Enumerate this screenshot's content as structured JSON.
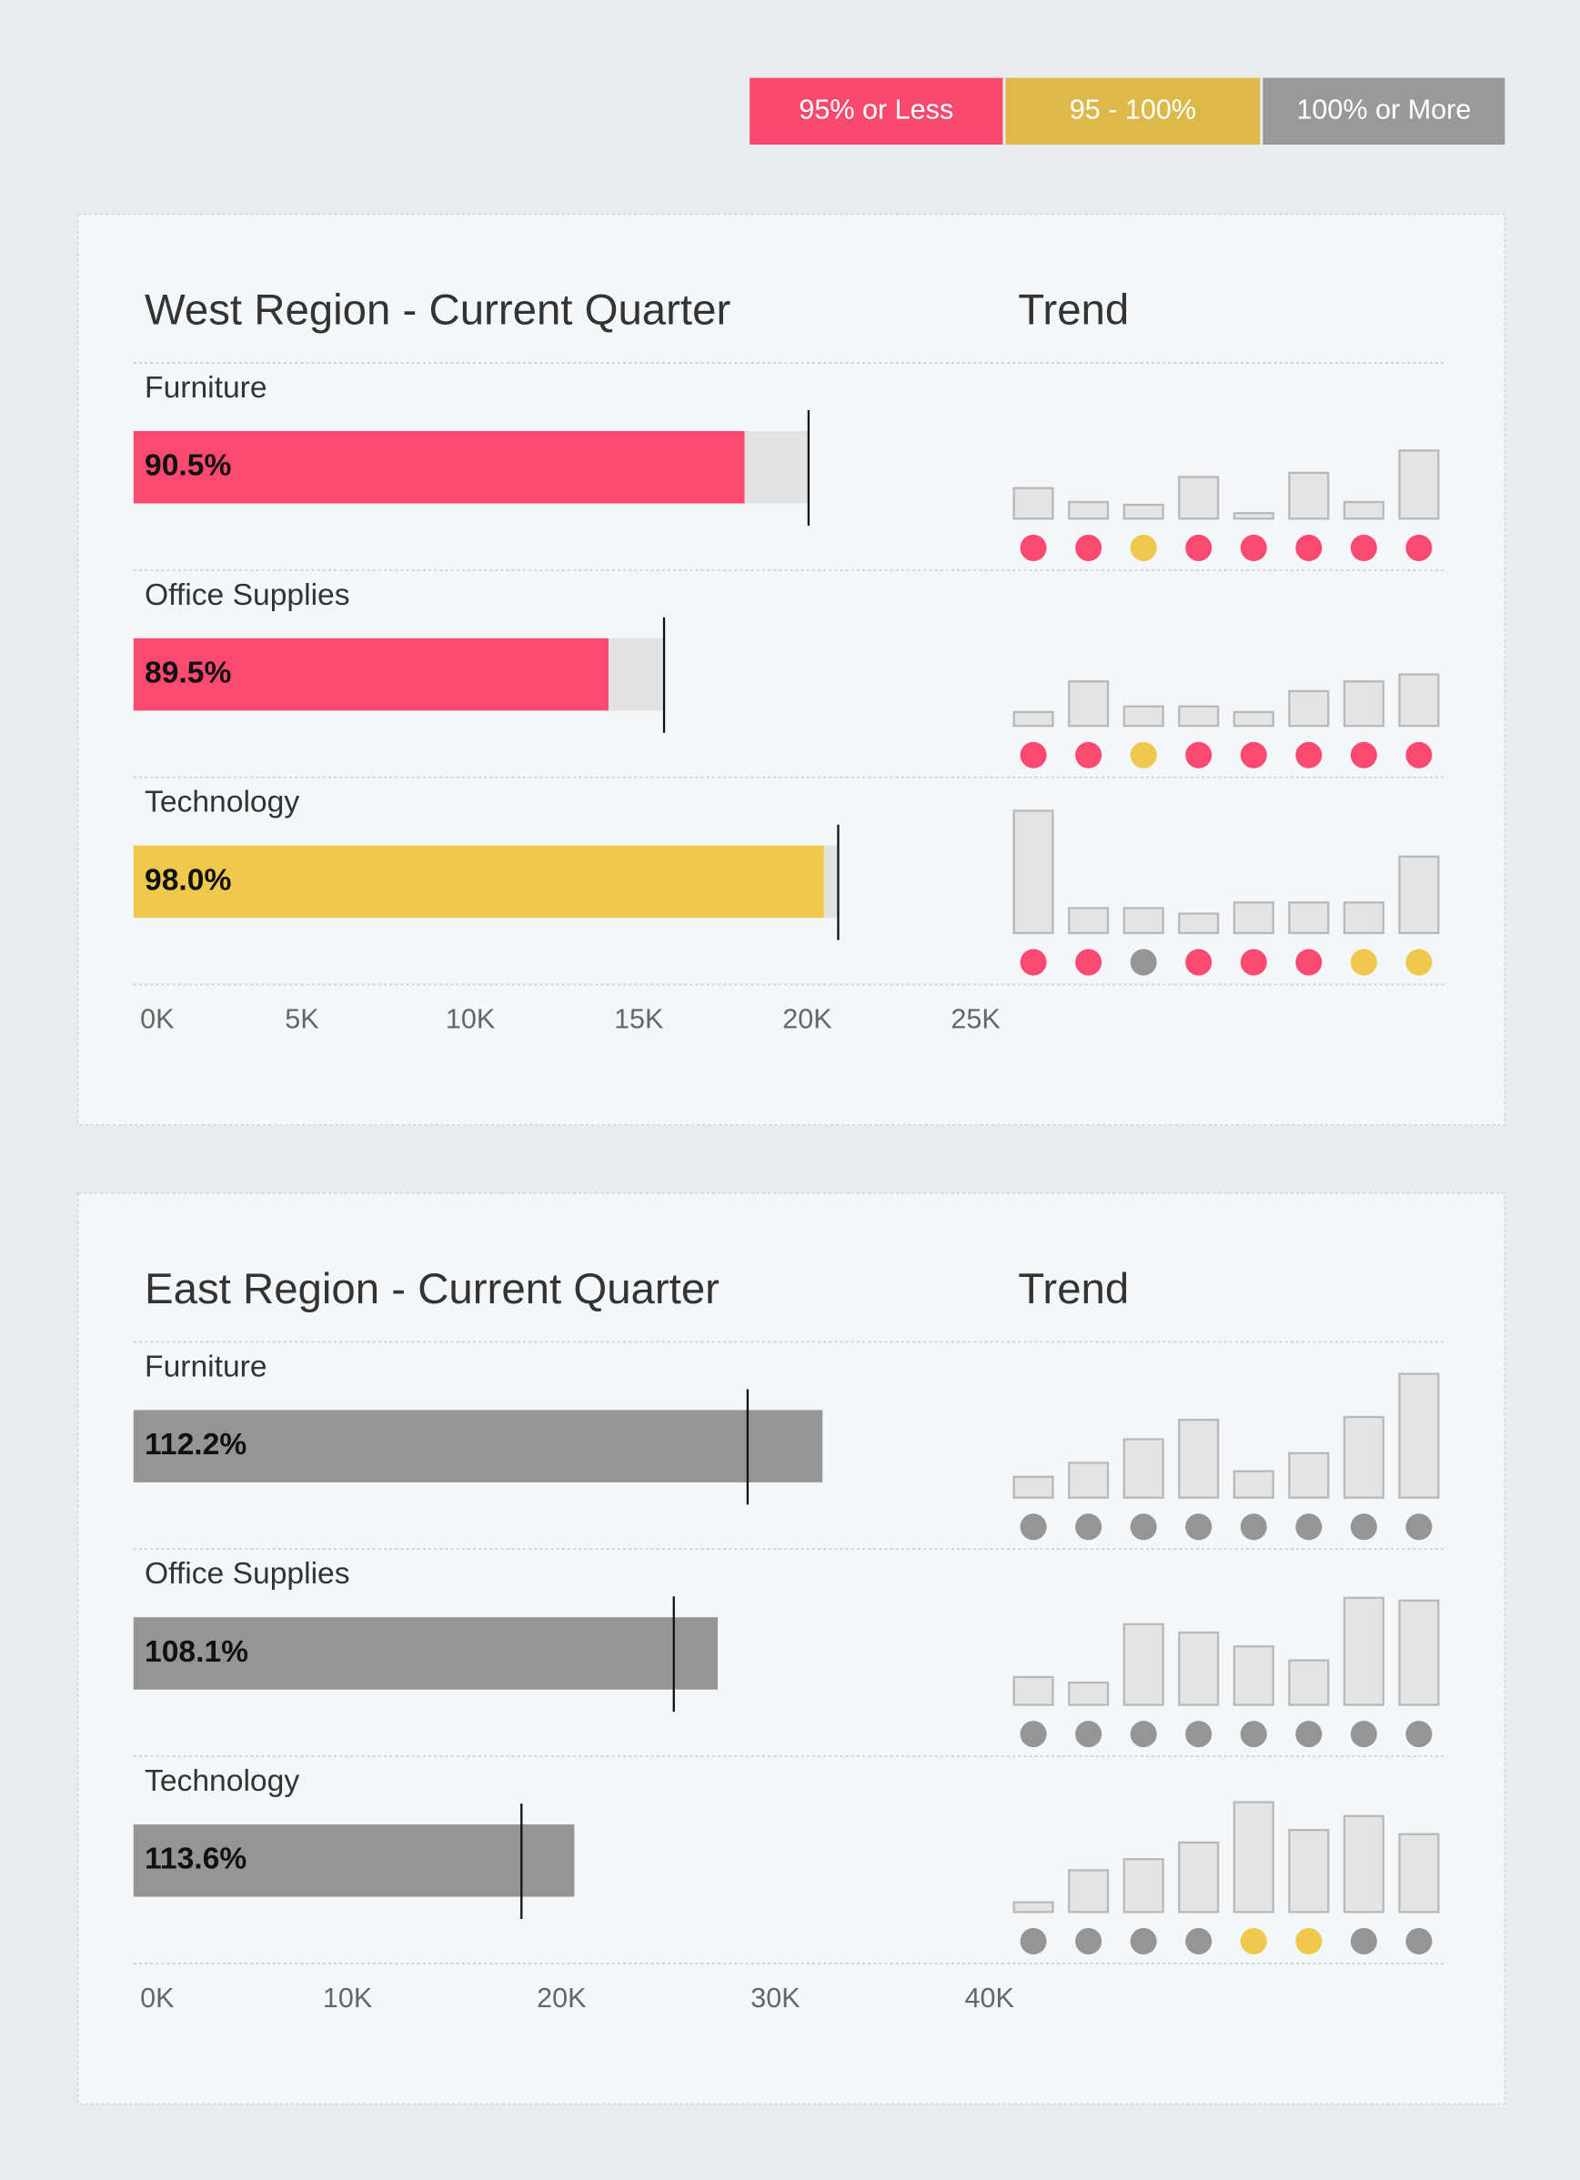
{
  "legend": [
    {
      "label": "95% or Less",
      "color": "#f8496f"
    },
    {
      "label": "95 - 100%",
      "color": "#dcb94a"
    },
    {
      "label": "100% or More",
      "color": "#999999"
    }
  ],
  "status_colors": [
    "#fb4a72",
    "#eec94c",
    "#959595"
  ],
  "chart_data": [
    {
      "type": "bullet",
      "title": "West Region - Current Quarter",
      "trend_title": "Trend",
      "categories": [
        "Furniture",
        "Office Supplies",
        "Technology"
      ],
      "values": [
        18140,
        14100,
        20500
      ],
      "value_labels": [
        "90.5%",
        "89.5%",
        "98.0%"
      ],
      "targets": [
        20040,
        15750,
        20920
      ],
      "status": [
        0,
        0,
        1
      ],
      "xlim": [
        0,
        25600
      ],
      "xticks": [
        {
          "value": 0,
          "label": "0K"
        },
        {
          "value": 5000,
          "label": "5K"
        },
        {
          "value": 10000,
          "label": "10K"
        },
        {
          "value": 15000,
          "label": "15K"
        },
        {
          "value": 20000,
          "label": "20K"
        },
        {
          "value": 25000,
          "label": "25K"
        }
      ],
      "trend": [
        [
          22,
          12,
          10,
          30,
          4,
          33,
          12,
          49
        ],
        [
          10,
          32,
          14,
          14,
          10,
          25,
          32,
          37
        ],
        [
          88,
          18,
          18,
          14,
          22,
          22,
          22,
          55
        ]
      ],
      "trend_status": [
        [
          0,
          0,
          1,
          0,
          0,
          0,
          0,
          0
        ],
        [
          0,
          0,
          1,
          0,
          0,
          0,
          0,
          0
        ],
        [
          0,
          0,
          2,
          0,
          0,
          0,
          1,
          1
        ]
      ],
      "trend_ylim": [
        0,
        90
      ]
    },
    {
      "type": "bullet",
      "title": "East Region - Current Quarter",
      "trend_title": "Trend",
      "categories": [
        "Furniture",
        "Office Supplies",
        "Technology"
      ],
      "values": [
        32200,
        27300,
        20600
      ],
      "value_labels": [
        "112.2%",
        "108.1%",
        "113.6%"
      ],
      "targets": [
        28700,
        25250,
        18130
      ],
      "status": [
        2,
        2,
        2
      ],
      "xlim": [
        0,
        40300
      ],
      "xticks": [
        {
          "value": 0,
          "label": "0K"
        },
        {
          "value": 10000,
          "label": "10K"
        },
        {
          "value": 20000,
          "label": "20K"
        },
        {
          "value": 30000,
          "label": "30K"
        },
        {
          "value": 40000,
          "label": "40K"
        }
      ],
      "trend": [
        [
          15,
          25,
          42,
          56,
          19,
          32,
          58,
          89
        ],
        [
          20,
          16,
          58,
          52,
          42,
          32,
          77,
          75
        ],
        [
          7,
          30,
          38,
          50,
          79,
          59,
          69,
          56
        ]
      ],
      "trend_status": [
        [
          2,
          2,
          2,
          2,
          2,
          2,
          2,
          2
        ],
        [
          2,
          2,
          2,
          2,
          2,
          2,
          2,
          2
        ],
        [
          2,
          2,
          2,
          2,
          1,
          1,
          2,
          2
        ]
      ],
      "trend_ylim": [
        0,
        90
      ]
    }
  ]
}
